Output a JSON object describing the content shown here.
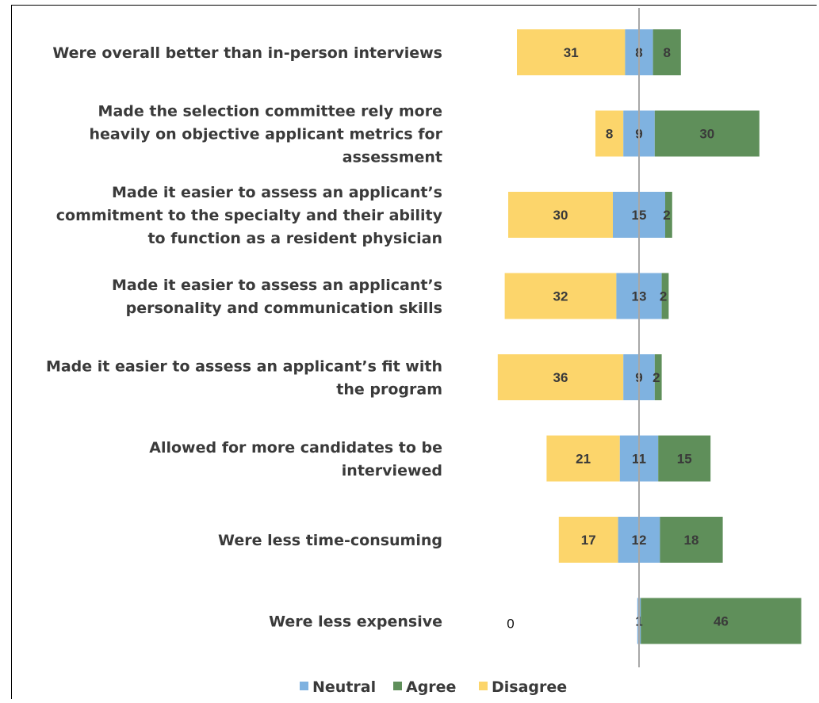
{
  "chart_data": {
    "type": "bar",
    "orientation": "horizontal",
    "stacked": "diverging",
    "categories": [
      "Were overall better than in-person interviews",
      "Made the selection committee rely more heavily on objective applicant metrics for assessment",
      "Made it easier to assess an applicant’s commitment to the specialty and their ability to function as a resident physician",
      "Made it easier to assess an applicant’s personality and communication skills",
      "Made it easier to assess an applicant’s fit with the program",
      "Allowed for more candidates to be interviewed",
      "Were less time-consuming",
      "Were less expensive"
    ],
    "category_lines": [
      [
        "Were overall better than in-person interviews"
      ],
      [
        "Made the selection committee rely more",
        "heavily on objective applicant metrics for",
        "assessment"
      ],
      [
        "Made it easier to assess an applicant’s",
        "commitment to the specialty and their ability",
        "to function as a resident physician"
      ],
      [
        "Made it easier to assess an applicant’s",
        "personality and communication skills"
      ],
      [
        "Made it easier to assess an applicant’s fit with",
        "the program"
      ],
      [
        "Allowed for more candidates to be",
        "interviewed"
      ],
      [
        "Were less time-consuming"
      ],
      [
        "Were less expensive"
      ]
    ],
    "series": [
      {
        "name": "Neutral",
        "color": "#7fb2e0",
        "values": [
          8,
          9,
          15,
          13,
          9,
          11,
          12,
          1
        ]
      },
      {
        "name": "Agree",
        "color": "#5f8f5a",
        "values": [
          8,
          30,
          2,
          2,
          2,
          15,
          18,
          46
        ]
      },
      {
        "name": "Disagree",
        "color": "#fcd56b",
        "values": [
          31,
          8,
          30,
          32,
          36,
          21,
          17,
          0
        ]
      }
    ],
    "legend": [
      "Neutral",
      "Agree",
      "Disagree"
    ],
    "legend_position": "bottom",
    "grid": false
  }
}
